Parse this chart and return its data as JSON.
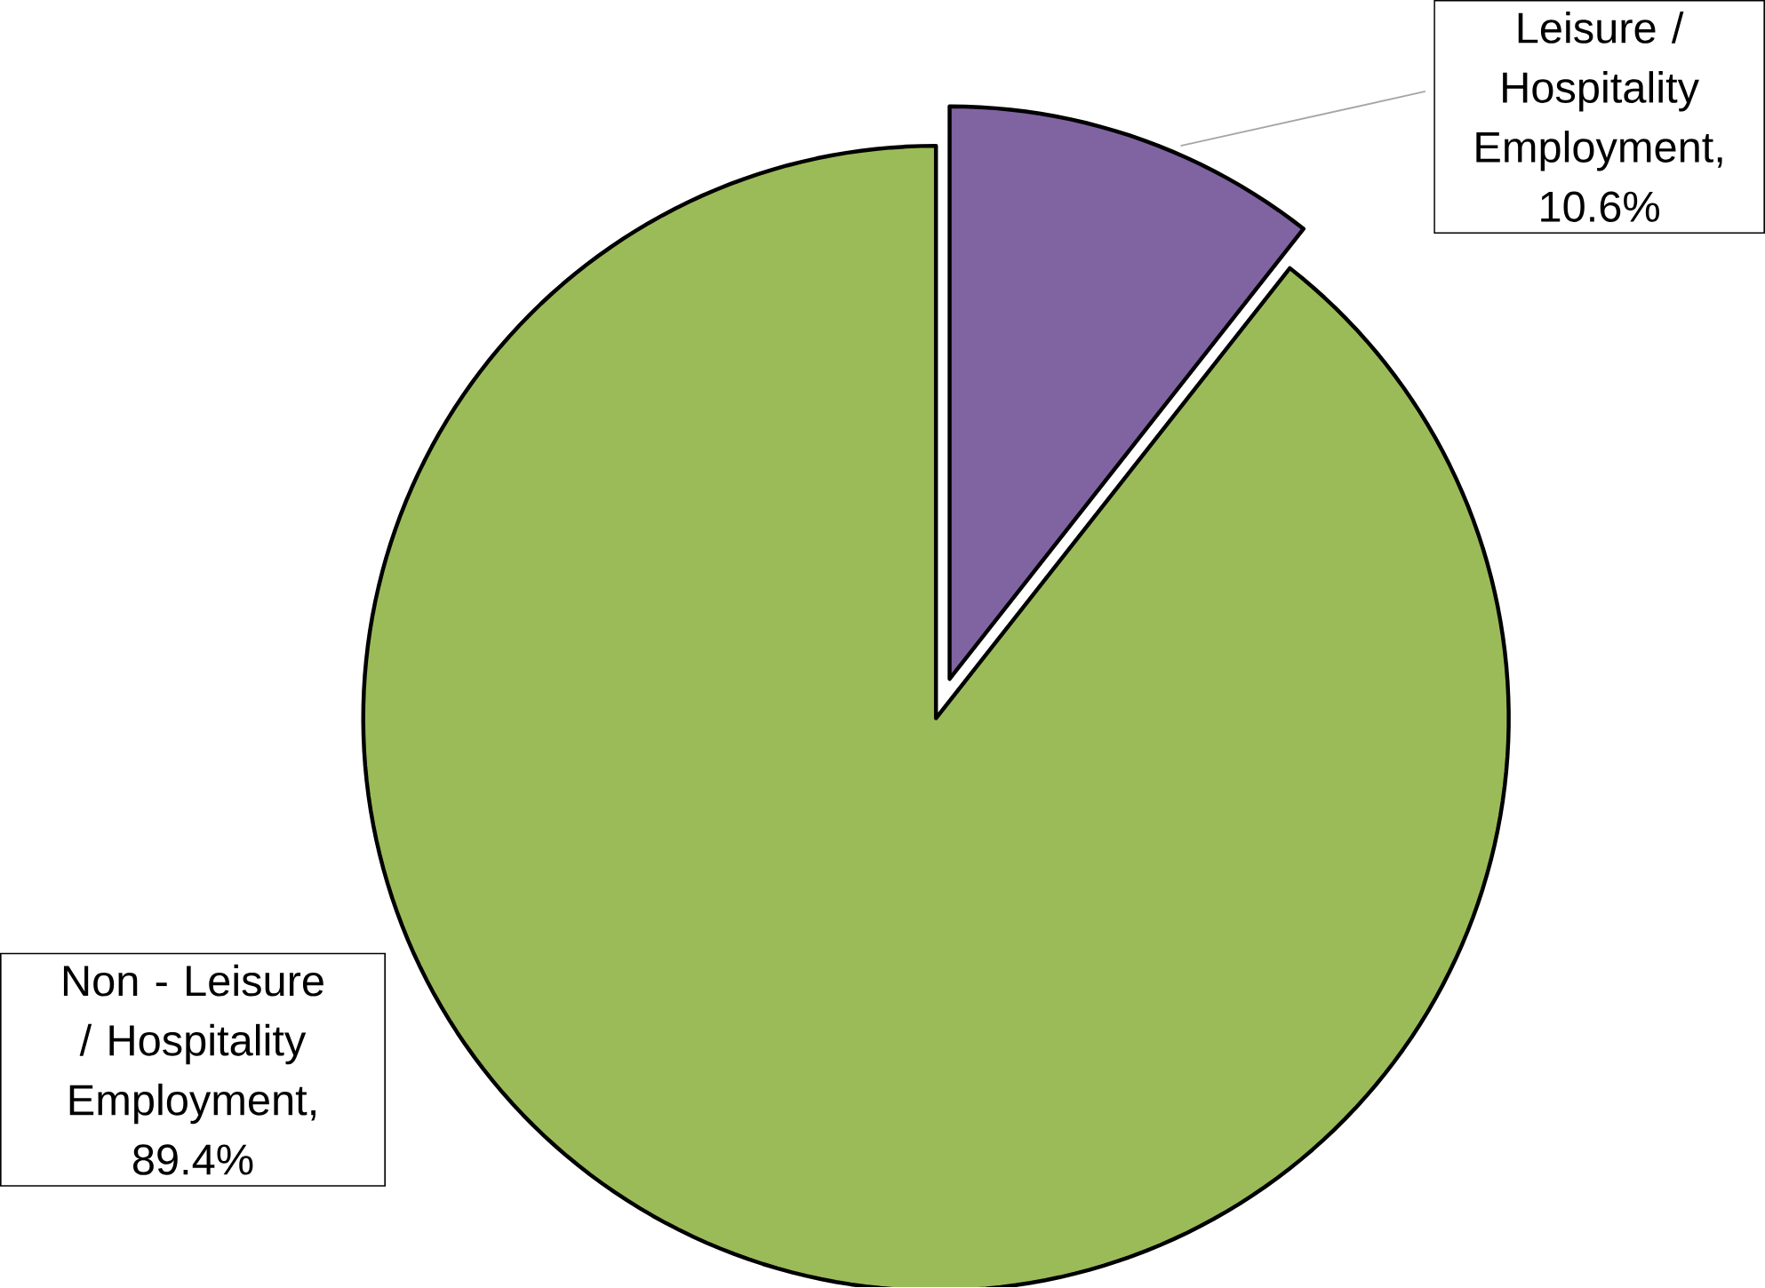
{
  "chart_data": {
    "type": "pie",
    "categories": [
      "Leisure / Hospitality Employment",
      "Non - Leisure / Hospitality Employment"
    ],
    "values": [
      10.6,
      89.4
    ],
    "colors": [
      "#8064a2",
      "#9bbb59"
    ],
    "value_labels": [
      ", 10.6%",
      ", 89.4%"
    ]
  }
}
